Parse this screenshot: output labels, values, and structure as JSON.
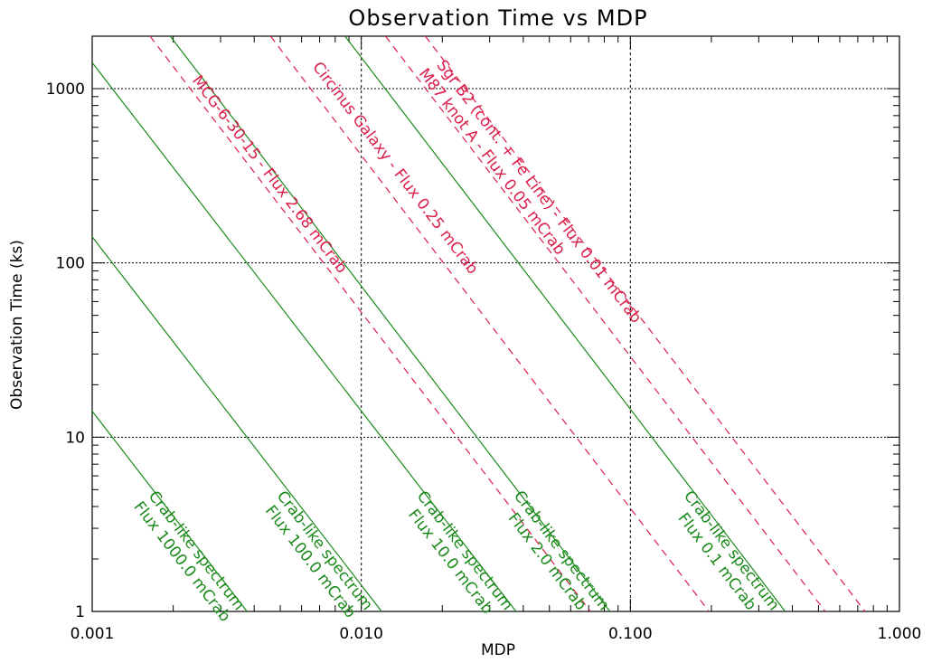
{
  "chart_data": {
    "type": "line",
    "title": "Observation Time vs MDP",
    "xlabel": "MDP",
    "ylabel": "Observation Time (ks)",
    "x_scale": "log",
    "y_scale": "log",
    "xlim": [
      0.001,
      1.0
    ],
    "ylim": [
      1,
      2000
    ],
    "x_ticks": [
      0.001,
      0.01,
      0.1,
      1.0
    ],
    "x_tick_labels": [
      "0.001",
      "0.010",
      "0.100",
      "1.000"
    ],
    "y_ticks": [
      1,
      10,
      100,
      1000
    ],
    "y_tick_labels": [
      "1",
      "10",
      "100",
      "1000"
    ],
    "grid": true,
    "legend": "none",
    "colors": {
      "crab": "#1a8a1a",
      "source": "#dc1e4a",
      "grid": "#000000"
    },
    "series": [
      {
        "name": "Crab-like spectrum\nFlux 1000.0 mCrab",
        "group": "crab",
        "style": "solid",
        "x": [
          0.001,
          0.00376
        ],
        "y": [
          14.1,
          1
        ]
      },
      {
        "name": "Crab-like spectrum\nFlux 100.0 mCrab",
        "group": "crab",
        "style": "solid",
        "x": [
          0.001,
          0.0119
        ],
        "y": [
          141,
          1
        ]
      },
      {
        "name": "Crab-like spectrum\nFlux 10.0 mCrab",
        "group": "crab",
        "style": "solid",
        "x": [
          0.001,
          0.0376
        ],
        "y": [
          1410,
          1
        ]
      },
      {
        "name": "Crab-like spectrum\nFlux 2.0 mCrab",
        "group": "crab",
        "style": "solid",
        "x": [
          0.00195,
          0.084
        ],
        "y": [
          2000,
          1
        ]
      },
      {
        "name": "Crab-like spectrum\nFlux 0.1 mCrab",
        "group": "crab",
        "style": "solid",
        "x": [
          0.0087,
          0.376
        ],
        "y": [
          2000,
          1
        ]
      },
      {
        "name": "MCG-6-30-15 - Flux 2.68 mCrab",
        "group": "source",
        "style": "dashed",
        "x": [
          0.00164,
          0.071
        ],
        "y": [
          2000,
          1
        ]
      },
      {
        "name": "Circinus Galaxy - Flux 0.25 mCrab",
        "group": "source",
        "style": "dashed",
        "x": [
          0.0046,
          0.196
        ],
        "y": [
          2000,
          1
        ]
      },
      {
        "name": "M87 knot A - Flux 0.05 mCrab",
        "group": "source",
        "style": "dashed",
        "x": [
          0.0123,
          0.53
        ],
        "y": [
          2000,
          1
        ]
      },
      {
        "name": "Sgr B2 (cont. + Fe Line) - Flux 0.01 mCrab",
        "group": "source",
        "style": "dashed",
        "x": [
          0.0173,
          0.745
        ],
        "y": [
          2000,
          1
        ]
      }
    ]
  }
}
